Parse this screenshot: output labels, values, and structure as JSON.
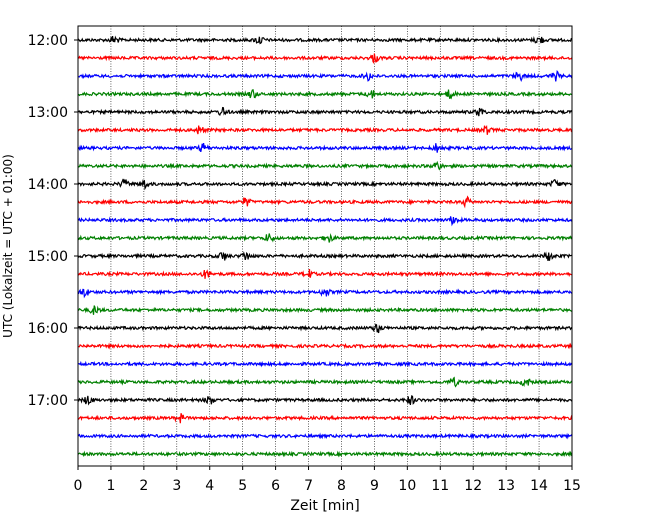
{
  "chart_data": {
    "type": "line",
    "description": "",
    "xlabel": "Zeit  [min]",
    "ylabel": "UTC (Lokalzeit = UTC + 01:00)",
    "xlim": [
      0,
      15
    ],
    "xticks": [
      "0",
      "1",
      "2",
      "3",
      "4",
      "5",
      "6",
      "7",
      "8",
      "9",
      "10",
      "11",
      "12",
      "13",
      "14",
      "15"
    ],
    "yticks": [
      "12:00",
      "13:00",
      "14:00",
      "15:00",
      "16:00",
      "17:00"
    ],
    "grid": "vertical dotted lines at each minute",
    "trace_start": "12:00",
    "trace_interval_minutes": 15,
    "trace_count": 24,
    "color_cycle": [
      "#000000",
      "#ff0000",
      "#0000ff",
      "#008000"
    ],
    "trace_bursts_minutes": [
      [
        1.1,
        5.5,
        14.0
      ],
      [
        9.0
      ],
      [
        8.8,
        13.4,
        14.5
      ],
      [
        5.3,
        8.9,
        11.3
      ],
      [
        4.4,
        12.2
      ],
      [
        3.7,
        12.4
      ],
      [
        3.8,
        10.9
      ],
      [
        10.9
      ],
      [
        1.4,
        2.0,
        14.5
      ],
      [
        5.1,
        11.8
      ],
      [
        11.4
      ],
      [
        5.8,
        7.6
      ],
      [
        4.4,
        5.1,
        14.3
      ],
      [
        3.9,
        7.0
      ],
      [
        0.2,
        7.5
      ],
      [
        0.5
      ],
      [
        9.1
      ],
      [],
      [],
      [
        11.4,
        13.6
      ],
      [
        0.3,
        4.0,
        10.1
      ],
      [
        3.1
      ],
      [],
      []
    ]
  }
}
